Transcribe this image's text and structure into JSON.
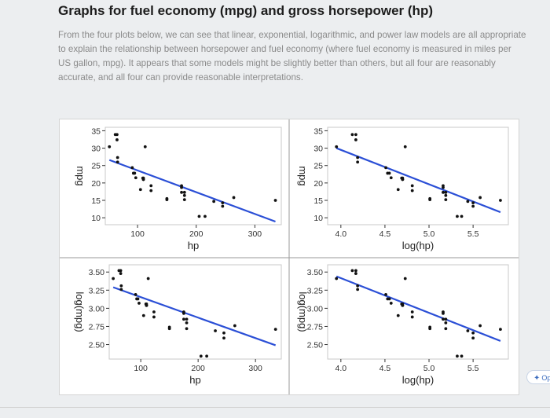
{
  "page": {
    "title": "Graphs for fuel economy (mpg) and gross horsepower (hp)",
    "paragraph": "From the four plots below, we can see that linear, exponential, logarithmic, and power law models are all appropriate to explain the relationship between horsepower and fuel economy (where fuel economy is measured in miles per US gallon, mpg). It appears that some models might be slightly better than others, but all four are reasonably accurate, and all four can provide reasonable interpretations.",
    "chip_label": "Op"
  },
  "chart_data": [
    {
      "type": "scatter",
      "id": "mpg-vs-hp",
      "title": "",
      "xlabel": "hp",
      "ylabel": "mpg",
      "xlim": [
        45,
        345
      ],
      "ylim": [
        8,
        36
      ],
      "xticks": [
        100,
        200,
        300
      ],
      "yticks": [
        10,
        15,
        20,
        25,
        30,
        35
      ],
      "grid": false,
      "points": [
        [
          52,
          30.4
        ],
        [
          62,
          33.9
        ],
        [
          65,
          33.9
        ],
        [
          65,
          32.4
        ],
        [
          66,
          27.3
        ],
        [
          66,
          26
        ],
        [
          91,
          24.4
        ],
        [
          93,
          22.8
        ],
        [
          95,
          22.8
        ],
        [
          97,
          21.5
        ],
        [
          105,
          18.1
        ],
        [
          109,
          21.4
        ],
        [
          110,
          21
        ],
        [
          110,
          21
        ],
        [
          110,
          21.4
        ],
        [
          113,
          30.4
        ],
        [
          123,
          19.2
        ],
        [
          123,
          17.8
        ],
        [
          150,
          15.2
        ],
        [
          150,
          15.5
        ],
        [
          175,
          18.7
        ],
        [
          175,
          19.2
        ],
        [
          175,
          17.3
        ],
        [
          180,
          16.4
        ],
        [
          180,
          17.3
        ],
        [
          180,
          15.2
        ],
        [
          205,
          10.4
        ],
        [
          215,
          10.4
        ],
        [
          230,
          14.7
        ],
        [
          245,
          13.3
        ],
        [
          245,
          14.3
        ],
        [
          264,
          15.8
        ],
        [
          335,
          15
        ]
      ],
      "fit_line": [
        [
          52,
          26.6
        ],
        [
          335,
          8.9
        ]
      ]
    },
    {
      "type": "scatter",
      "id": "mpg-vs-loghp",
      "title": "",
      "xlabel": "log(hp)",
      "ylabel": "mpg",
      "xlim": [
        3.85,
        5.9
      ],
      "ylim": [
        8,
        36
      ],
      "xticks": [
        4.0,
        4.5,
        5.0,
        5.5
      ],
      "yticks": [
        10,
        15,
        20,
        25,
        30,
        35
      ],
      "grid": false,
      "points": [
        [
          3.95,
          30.4
        ],
        [
          4.13,
          33.9
        ],
        [
          4.17,
          32.4
        ],
        [
          4.17,
          33.9
        ],
        [
          4.19,
          27.3
        ],
        [
          4.19,
          26
        ],
        [
          4.51,
          24.4
        ],
        [
          4.53,
          22.8
        ],
        [
          4.55,
          22.8
        ],
        [
          4.57,
          21.5
        ],
        [
          4.65,
          18.1
        ],
        [
          4.69,
          21.4
        ],
        [
          4.7,
          21
        ],
        [
          4.7,
          21
        ],
        [
          4.7,
          21.4
        ],
        [
          4.73,
          30.4
        ],
        [
          4.81,
          19.2
        ],
        [
          4.81,
          17.8
        ],
        [
          5.01,
          15.2
        ],
        [
          5.01,
          15.5
        ],
        [
          5.16,
          18.7
        ],
        [
          5.16,
          19.2
        ],
        [
          5.16,
          17.3
        ],
        [
          5.19,
          16.4
        ],
        [
          5.19,
          17.3
        ],
        [
          5.19,
          15.2
        ],
        [
          5.32,
          10.4
        ],
        [
          5.37,
          10.4
        ],
        [
          5.44,
          14.7
        ],
        [
          5.5,
          13.3
        ],
        [
          5.5,
          14.3
        ],
        [
          5.58,
          15.8
        ],
        [
          5.81,
          15
        ]
      ],
      "fit_line": [
        [
          3.95,
          30
        ],
        [
          5.81,
          11.6
        ]
      ]
    },
    {
      "type": "scatter",
      "id": "logmpg-vs-hp",
      "title": "",
      "xlabel": "hp",
      "ylabel": "log(mpg)",
      "xlim": [
        45,
        345
      ],
      "ylim": [
        2.3,
        3.6
      ],
      "xticks": [
        100,
        200,
        300
      ],
      "yticks": [
        2.5,
        2.75,
        3.0,
        3.25,
        3.5
      ],
      "ytick_labels": [
        "2.50",
        "2.75",
        "3.00",
        "3.25",
        "3.50"
      ],
      "grid": false,
      "points": [
        [
          52,
          3.41
        ],
        [
          62,
          3.52
        ],
        [
          65,
          3.52
        ],
        [
          65,
          3.48
        ],
        [
          66,
          3.31
        ],
        [
          66,
          3.26
        ],
        [
          91,
          3.19
        ],
        [
          93,
          3.13
        ],
        [
          95,
          3.13
        ],
        [
          97,
          3.07
        ],
        [
          105,
          2.9
        ],
        [
          109,
          3.06
        ],
        [
          110,
          3.04
        ],
        [
          110,
          3.04
        ],
        [
          110,
          3.06
        ],
        [
          113,
          3.41
        ],
        [
          123,
          2.95
        ],
        [
          123,
          2.88
        ],
        [
          150,
          2.72
        ],
        [
          150,
          2.74
        ],
        [
          175,
          2.93
        ],
        [
          175,
          2.95
        ],
        [
          175,
          2.85
        ],
        [
          180,
          2.8
        ],
        [
          180,
          2.85
        ],
        [
          180,
          2.72
        ],
        [
          205,
          2.34
        ],
        [
          215,
          2.34
        ],
        [
          230,
          2.69
        ],
        [
          245,
          2.59
        ],
        [
          245,
          2.66
        ],
        [
          264,
          2.76
        ],
        [
          335,
          2.71
        ]
      ],
      "fit_line": [
        [
          52,
          3.29
        ],
        [
          335,
          2.49
        ]
      ]
    },
    {
      "type": "scatter",
      "id": "logmpg-vs-loghp",
      "title": "",
      "xlabel": "log(hp)",
      "ylabel": "log(mpg)",
      "xlim": [
        3.85,
        5.9
      ],
      "ylim": [
        2.3,
        3.6
      ],
      "xticks": [
        4.0,
        4.5,
        5.0,
        5.5
      ],
      "yticks": [
        2.5,
        2.75,
        3.0,
        3.25,
        3.5
      ],
      "ytick_labels": [
        "2.50",
        "2.75",
        "3.00",
        "3.25",
        "3.50"
      ],
      "grid": false,
      "points": [
        [
          3.95,
          3.41
        ],
        [
          4.13,
          3.52
        ],
        [
          4.17,
          3.48
        ],
        [
          4.17,
          3.52
        ],
        [
          4.19,
          3.31
        ],
        [
          4.19,
          3.26
        ],
        [
          4.51,
          3.19
        ],
        [
          4.53,
          3.13
        ],
        [
          4.55,
          3.13
        ],
        [
          4.57,
          3.07
        ],
        [
          4.65,
          2.9
        ],
        [
          4.69,
          3.06
        ],
        [
          4.7,
          3.04
        ],
        [
          4.7,
          3.04
        ],
        [
          4.7,
          3.06
        ],
        [
          4.73,
          3.41
        ],
        [
          4.81,
          2.95
        ],
        [
          4.81,
          2.88
        ],
        [
          5.01,
          2.72
        ],
        [
          5.01,
          2.74
        ],
        [
          5.16,
          2.93
        ],
        [
          5.16,
          2.95
        ],
        [
          5.16,
          2.85
        ],
        [
          5.19,
          2.8
        ],
        [
          5.19,
          2.85
        ],
        [
          5.19,
          2.72
        ],
        [
          5.32,
          2.34
        ],
        [
          5.37,
          2.34
        ],
        [
          5.44,
          2.69
        ],
        [
          5.5,
          2.59
        ],
        [
          5.5,
          2.66
        ],
        [
          5.58,
          2.76
        ],
        [
          5.81,
          2.71
        ]
      ],
      "fit_line": [
        [
          3.95,
          3.44
        ],
        [
          5.81,
          2.55
        ]
      ]
    }
  ],
  "colors": {
    "fit_line": "#2b4fd6",
    "points": "#111111",
    "plot_border": "#c8c8c8",
    "panel_divider": "#9a9a9a"
  }
}
